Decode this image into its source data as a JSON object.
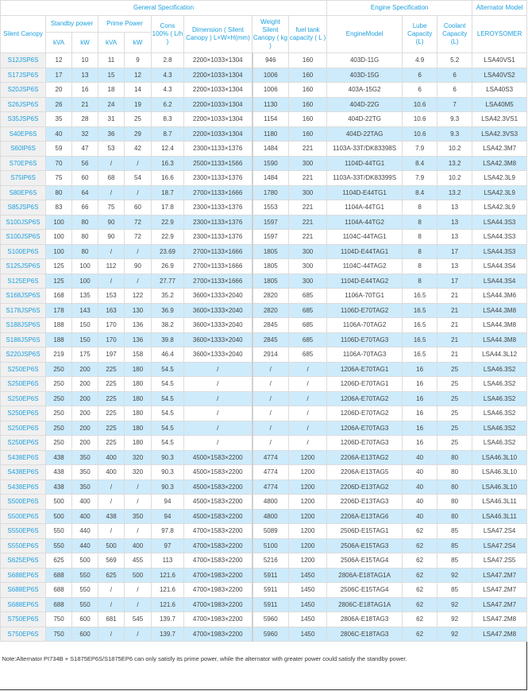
{
  "header": {
    "general": "General Specification",
    "engine": "Engine Specification",
    "alternator": "Alternator Model",
    "silent_canopy": "Silent Canopy",
    "standby": "Standby power",
    "prime": "Prime Power",
    "cons": "Cons 100% ( L/h )",
    "dimension": "Dimension ( Silent Canopy ) L×W×H(mm)",
    "weight": "Weight Silent Canopy ( kg )",
    "fuel": "fuel tank capacity ( L )",
    "engine_model": "EngineModel",
    "lube": "Lube Capacity (L)",
    "coolant": "Coolant Capacity (L)",
    "leroy": "LEROYSOMER",
    "kva1": "kVA",
    "kw1": "kW",
    "kva2": "kVA",
    "kw2": "kW"
  },
  "rows": [
    [
      "S12JSP6S",
      "12",
      "10",
      "11",
      "9",
      "2.8",
      "2200×1033×1304",
      "946",
      "160",
      "403D-11G",
      "4.9",
      "5.2",
      "LSA40VS1"
    ],
    [
      "S17JSP6S",
      "17",
      "13",
      "15",
      "12",
      "4.3",
      "2200×1033×1304",
      "1006",
      "160",
      "403D-15G",
      "6",
      "6",
      "LSA40VS2"
    ],
    [
      "S20JSP6S",
      "20",
      "16",
      "18",
      "14",
      "4.3",
      "2200×1033×1304",
      "1006",
      "160",
      "403A-15G2",
      "6",
      "6",
      "LSA40S3"
    ],
    [
      "S26JSP6S",
      "26",
      "21",
      "24",
      "19",
      "6.2",
      "2200×1033×1304",
      "1130",
      "160",
      "404D-22G",
      "10.6",
      "7",
      "LSA40M5"
    ],
    [
      "S35JSP6S",
      "35",
      "28",
      "31",
      "25",
      "8.3",
      "2200×1033×1304",
      "1154",
      "160",
      "404D-22TG",
      "10.6",
      "9.3",
      "LSA42.3VS1"
    ],
    [
      "S40EP6S",
      "40",
      "32",
      "36",
      "29",
      "8.7",
      "2200×1033×1304",
      "1180",
      "160",
      "404D-22TAG",
      "10.6",
      "9.3",
      "LSA42.3VS3"
    ],
    [
      "S60IP6S",
      "59",
      "47",
      "53",
      "42",
      "12.4",
      "2300×1133×1376",
      "1484",
      "221",
      "1103A-33T/DK83398S",
      "7.9",
      "10.2",
      "LSA42.3M7"
    ],
    [
      "S70EP6S",
      "70",
      "56",
      "/",
      "/",
      "16.3",
      "2500×1133×1566",
      "1590",
      "300",
      "1104D-44TG1",
      "8.4",
      "13.2",
      "LSA42.3M8"
    ],
    [
      "S75IP6S",
      "75",
      "60",
      "68",
      "54",
      "16.6",
      "2300×1133×1376",
      "1484",
      "221",
      "1103A-33T/DK83399S",
      "7.9",
      "10.2",
      "LSA42.3L9"
    ],
    [
      "S80EP6S",
      "80",
      "64",
      "/",
      "/",
      "18.7",
      "2700×1133×1666",
      "1780",
      "300",
      "1104D-E44TG1",
      "8.4",
      "13.2",
      "LSA42.3L9"
    ],
    [
      "S85JSP6S",
      "83",
      "66",
      "75",
      "60",
      "17.8",
      "2300×1133×1376",
      "1553",
      "221",
      "1104A-44TG1",
      "8",
      "13",
      "LSA42.3L9"
    ],
    [
      "S100JSP6S",
      "100",
      "80",
      "90",
      "72",
      "22.9",
      "2300×1133×1376",
      "1597",
      "221",
      "1104A-44TG2",
      "8",
      "13",
      "LSA44.3S3"
    ],
    [
      "S100JSP6S",
      "100",
      "80",
      "90",
      "72",
      "22.9",
      "2300×1133×1376",
      "1597",
      "221",
      "1104C-44TAG1",
      "8",
      "13",
      "LSA44.3S3"
    ],
    [
      "S100EP6S",
      "100",
      "80",
      "/",
      "/",
      "23.69",
      "2700×1133×1666",
      "1805",
      "300",
      "1104D-E44TAG1",
      "8",
      "17",
      "LSA44.3S3"
    ],
    [
      "S125JSP6S",
      "125",
      "100",
      "112",
      "90",
      "26.9",
      "2700×1133×1666",
      "1805",
      "300",
      "1104C-44TAG2",
      "8",
      "13",
      "LSA44.3S4"
    ],
    [
      "S125EP6S",
      "125",
      "100",
      "/",
      "/",
      "27.77",
      "2700×1133×1666",
      "1805",
      "300",
      "1104D-E44TAG2",
      "8",
      "17",
      "LSA44.3S4"
    ],
    [
      "S168JSP6S",
      "168",
      "135",
      "153",
      "122",
      "35.2",
      "3600×1333×2040",
      "2820",
      "685",
      "1106A-70TG1",
      "16.5",
      "21",
      "LSA44.3M6"
    ],
    [
      "S178JSP6S",
      "178",
      "143",
      "163",
      "130",
      "36.9",
      "3600×1333×2040",
      "2820",
      "685",
      "1106D-E70TAG2",
      "16.5",
      "21",
      "LSA44.3M8"
    ],
    [
      "S188JSP6S",
      "188",
      "150",
      "170",
      "136",
      "38.2",
      "3600×1333×2040",
      "2845",
      "685",
      "1106A-70TAG2",
      "16.5",
      "21",
      "LSA44.3M8"
    ],
    [
      "S188JSP6S",
      "188",
      "150",
      "170",
      "136",
      "39.8",
      "3600×1333×2040",
      "2845",
      "685",
      "1106D-E70TAG3",
      "16.5",
      "21",
      "LSA44.3M8"
    ],
    [
      "S220JSP6S",
      "219",
      "175",
      "197",
      "158",
      "46.4",
      "3600×1333×2040",
      "2914",
      "685",
      "1106A-70TAG3",
      "16.5",
      "21",
      "LSA44.3L12"
    ],
    [
      "S250EP6S",
      "250",
      "200",
      "225",
      "180",
      "54.5",
      "/",
      "/",
      "/",
      "1206A-E70TAG1",
      "16",
      "25",
      "LSA46.3S2"
    ],
    [
      "S250EP6S",
      "250",
      "200",
      "225",
      "180",
      "54.5",
      "/",
      "/",
      "/",
      "1206D-E70TAG1",
      "16",
      "25",
      "LSA46.3S2"
    ],
    [
      "S250EP6S",
      "250",
      "200",
      "225",
      "180",
      "54.5",
      "/",
      "/",
      "/",
      "1206A-E70TAG2",
      "16",
      "25",
      "LSA46.3S2"
    ],
    [
      "S250EP6S",
      "250",
      "200",
      "225",
      "180",
      "54.5",
      "/",
      "/",
      "/",
      "1206D-E70TAG2",
      "16",
      "25",
      "LSA46.3S2"
    ],
    [
      "S250EP6S",
      "250",
      "200",
      "225",
      "180",
      "54.5",
      "/",
      "/",
      "/",
      "1206A-E70TAG3",
      "16",
      "25",
      "LSA46.3S2"
    ],
    [
      "S250EP6S",
      "250",
      "200",
      "225",
      "180",
      "54.5",
      "/",
      "/",
      "/",
      "1206D-E70TAG3",
      "16",
      "25",
      "LSA46.3S2"
    ],
    [
      "S438EP6S",
      "438",
      "350",
      "400",
      "320",
      "90.3",
      "4500×1583×2200",
      "4774",
      "1200",
      "2206A-E13TAG2",
      "40",
      "80",
      "LSA46.3L10"
    ],
    [
      "S438EP6S",
      "438",
      "350",
      "400",
      "320",
      "90.3",
      "4500×1583×2200",
      "4774",
      "1200",
      "2206A-E13TAG5",
      "40",
      "80",
      "LSA46.3L10"
    ],
    [
      "S438EP6S",
      "438",
      "350",
      "/",
      "/",
      "90.3",
      "4500×1583×2200",
      "4774",
      "1200",
      "2206D-E13TAG2",
      "40",
      "80",
      "LSA46.3L10"
    ],
    [
      "S500EP6S",
      "500",
      "400",
      "/",
      "/",
      "94",
      "4500×1583×2200",
      "4800",
      "1200",
      "2206D-E13TAG3",
      "40",
      "80",
      "LSA46.3L11"
    ],
    [
      "S500EP6S",
      "500",
      "400",
      "438",
      "350",
      "94",
      "4500×1583×2200",
      "4800",
      "1200",
      "2206A-E13TAG6",
      "40",
      "80",
      "LSA46.3L11"
    ],
    [
      "S550EP6S",
      "550",
      "440",
      "/",
      "/",
      "97.8",
      "4700×1583×2200",
      "5089",
      "1200",
      "2506D-E15TAG1",
      "62",
      "85",
      "LSA47.2S4"
    ],
    [
      "S550EP6S",
      "550",
      "440",
      "500",
      "400",
      "97",
      "4700×1583×2200",
      "5100",
      "1200",
      "2506A-E15TAG3",
      "62",
      "85",
      "LSA47.2S4"
    ],
    [
      "S625EP6S",
      "625",
      "500",
      "569",
      "455",
      "113",
      "4700×1583×2200",
      "5216",
      "1200",
      "2506A-E15TAG4",
      "62",
      "85",
      "LSA47.2S5"
    ],
    [
      "S688EP6S",
      "688",
      "550",
      "625",
      "500",
      "121.6",
      "4700×1983×2200",
      "5911",
      "1450",
      "2806A-E18TAG1A",
      "62",
      "92",
      "LSA47.2M7"
    ],
    [
      "S688EP6S",
      "688",
      "550",
      "/",
      "/",
      "121.6",
      "4700×1983×2200",
      "5911",
      "1450",
      "2506C-E15TAG4",
      "62",
      "85",
      "LSA47.2M7"
    ],
    [
      "S688EP6S",
      "688",
      "550",
      "/",
      "/",
      "121.6",
      "4700×1983×2200",
      "5911",
      "1450",
      "2806C-E18TAG1A",
      "62",
      "92",
      "LSA47.2M7"
    ],
    [
      "S750EP6S",
      "750",
      "600",
      "681",
      "545",
      "139.7",
      "4700×1983×2200",
      "5960",
      "1450",
      "2806A-E18TAG3",
      "62",
      "92",
      "LSA47.2M8"
    ],
    [
      "S750EP6S",
      "750",
      "600",
      "/",
      "/",
      "139.7",
      "4700×1983×2200",
      "5960",
      "1450",
      "2806C-E18TAG3",
      "62",
      "92",
      "LSA47.2M8"
    ]
  ],
  "note": "Note:Alternator PI734B + S1875EP6S/S1875EP6 can only satisfy its prime power, while the alternator with greater power could satisfy the standby power.",
  "colors": {
    "header_text": "#1ea0de",
    "stripe": "#cdebfb",
    "model_cell": "#f0f0f0"
  }
}
